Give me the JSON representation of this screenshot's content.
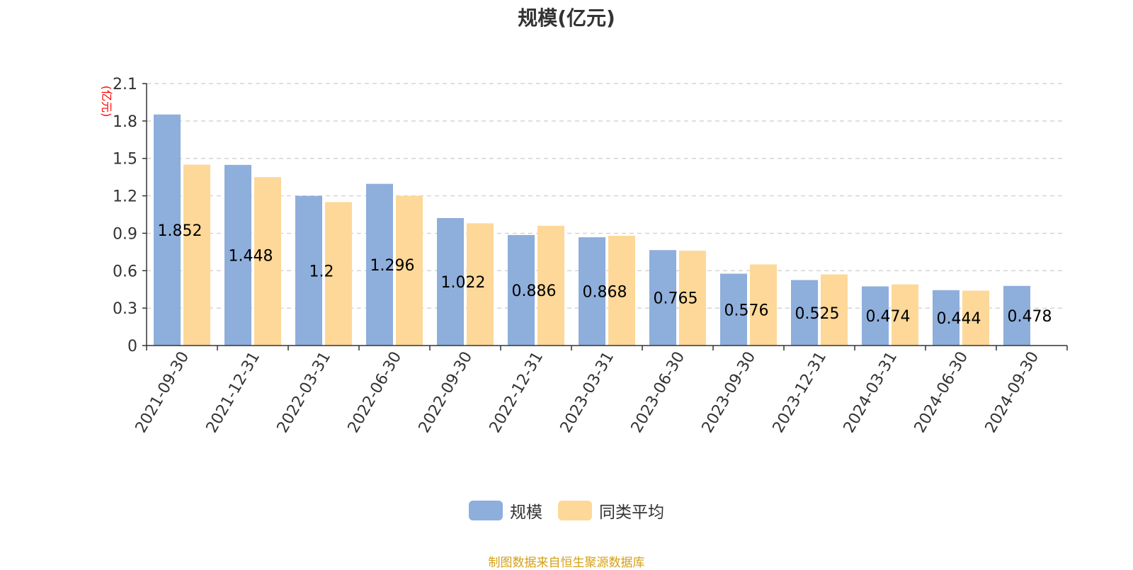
{
  "chart_data": {
    "type": "bar",
    "title": "规模(亿元)",
    "ylabel": "(亿元)",
    "xlabel": "",
    "ylim": [
      0,
      2.1
    ],
    "yticks": [
      "0",
      "0.3",
      "0.6",
      "0.9",
      "1.2",
      "1.5",
      "1.8",
      "2.1"
    ],
    "grid": true,
    "legend_position": "bottom",
    "categories": [
      "2021-09-30",
      "2021-12-31",
      "2022-03-31",
      "2022-06-30",
      "2022-09-30",
      "2022-12-31",
      "2023-03-31",
      "2023-06-30",
      "2023-09-30",
      "2023-12-31",
      "2024-03-31",
      "2024-06-30",
      "2024-09-30"
    ],
    "series": [
      {
        "name": "规模",
        "color": "#8eaedb",
        "values": [
          1.852,
          1.448,
          1.2,
          1.296,
          1.022,
          0.886,
          0.868,
          0.765,
          0.576,
          0.525,
          0.474,
          0.444,
          0.478
        ],
        "labels": [
          "1.852",
          "1.448",
          "1.2",
          "1.296",
          "1.022",
          "0.886",
          "0.868",
          "0.765",
          "0.576",
          "0.525",
          "0.474",
          "0.444",
          "0.478"
        ]
      },
      {
        "name": "同类平均",
        "color": "#fed898",
        "values": [
          1.45,
          1.35,
          1.15,
          1.2,
          0.98,
          0.96,
          0.88,
          0.76,
          0.65,
          0.57,
          0.49,
          0.44,
          null
        ]
      }
    ]
  },
  "source_note": "制图数据来自恒生聚源数据库"
}
